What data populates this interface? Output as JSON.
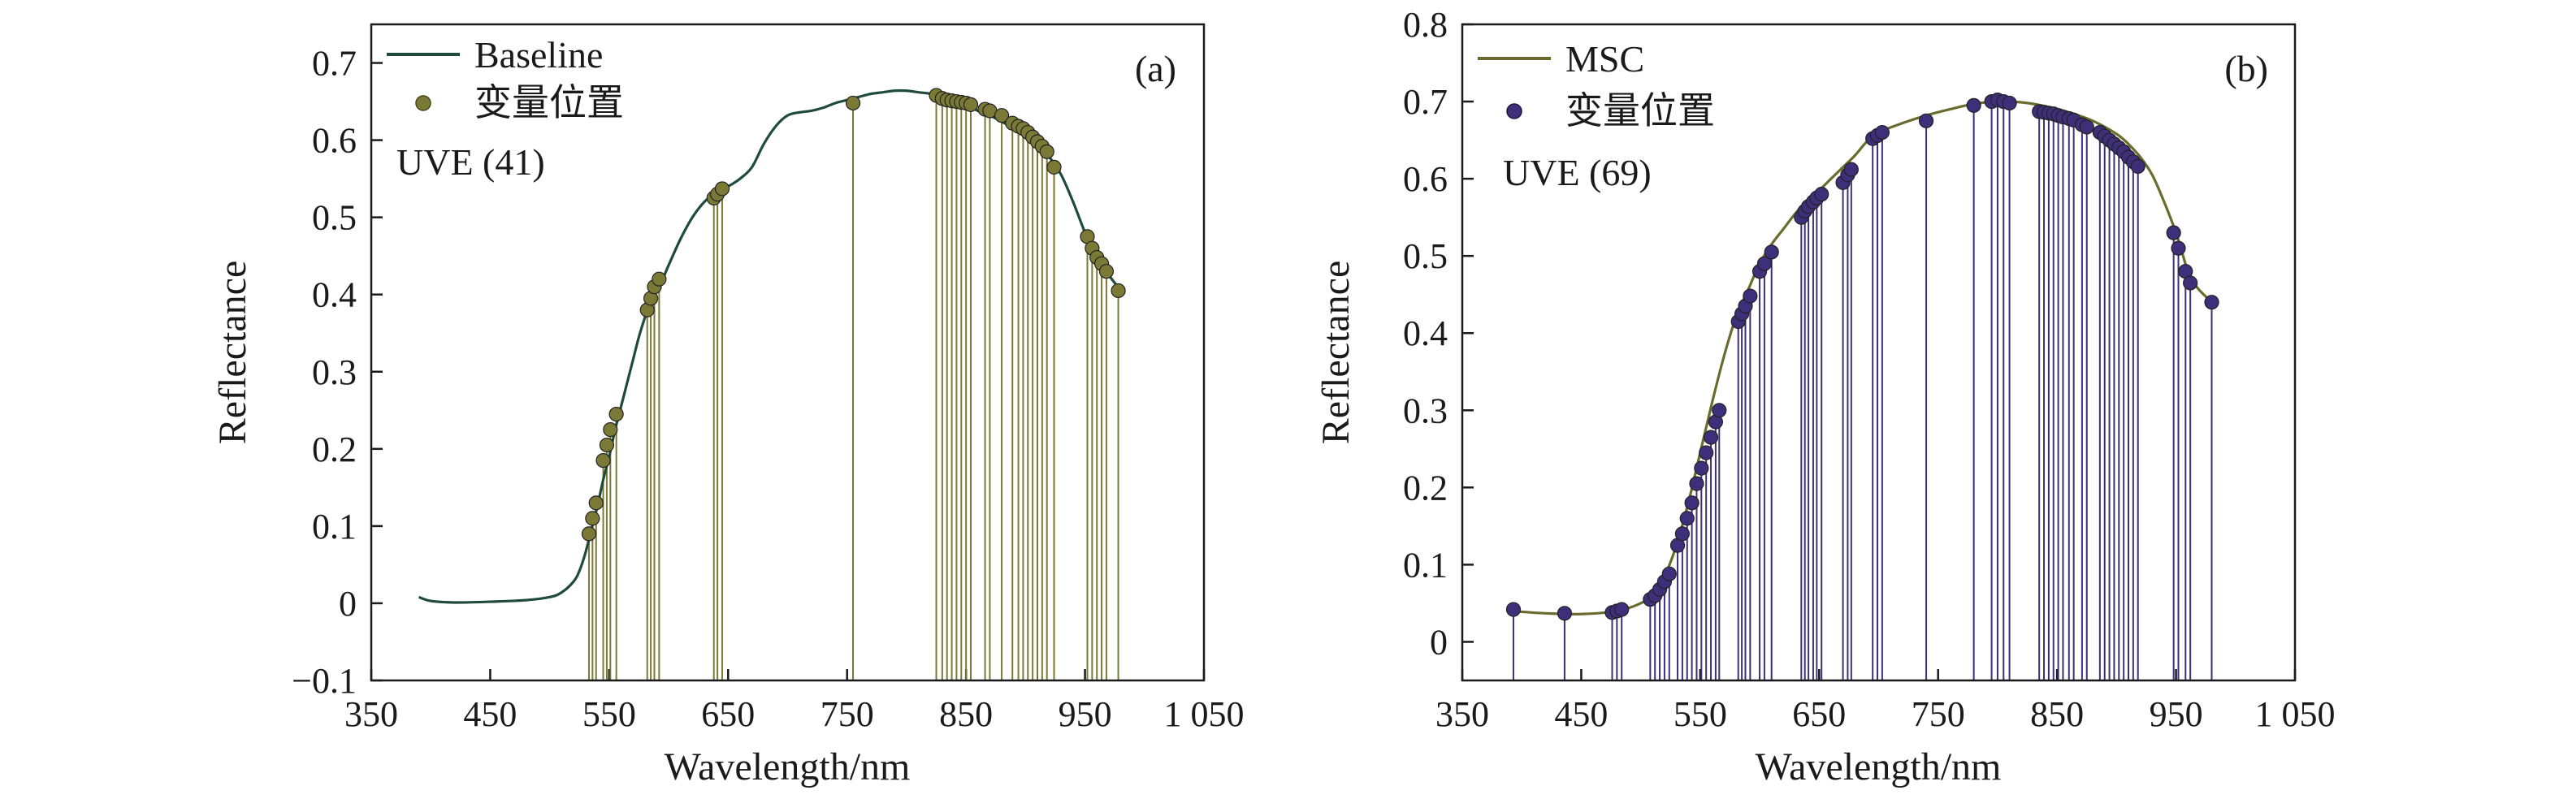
{
  "figure": {
    "panels": [
      {
        "panel_label": "(a)",
        "legend_line_label": "Baseline",
        "legend_marker_label": "变量位置",
        "method_label": "UVE (41)"
      },
      {
        "panel_label": "(b)",
        "legend_line_label": "MSC",
        "legend_marker_label": "变量位置",
        "method_label": "UVE (69)"
      }
    ]
  },
  "chart_data": [
    {
      "type": "line",
      "title": "",
      "panel_label": "(a)",
      "xlabel": "Wavelength/nm",
      "ylabel": "Reflectance",
      "xlim": [
        350,
        1050
      ],
      "ylim": [
        -0.1,
        0.75
      ],
      "xticks": [
        350,
        450,
        550,
        650,
        750,
        850,
        950,
        1050
      ],
      "xtick_labels": [
        "350",
        "450",
        "550",
        "650",
        "750",
        "850",
        "950",
        "1 050"
      ],
      "yticks": [
        -0.1,
        0,
        0.1,
        0.2,
        0.3,
        0.4,
        0.5,
        0.6,
        0.7
      ],
      "ytick_labels": [
        "−0.1",
        "0",
        "0.1",
        "0.2",
        "0.3",
        "0.4",
        "0.5",
        "0.6",
        "0.7"
      ],
      "legend_position": "top-left",
      "annotation": "UVE (41)",
      "line_color": "#1f4a3c",
      "marker_color": "#7a7a36",
      "stem_color": "#7a7a36",
      "series": [
        {
          "name": "Baseline",
          "kind": "line",
          "x": [
            390,
            400,
            420,
            450,
            480,
            500,
            510,
            520,
            525,
            530,
            535,
            540,
            545,
            550,
            555,
            560,
            565,
            570,
            575,
            580,
            585,
            590,
            595,
            600,
            610,
            620,
            630,
            640,
            650,
            660,
            670,
            680,
            690,
            700,
            710,
            720,
            730,
            740,
            750,
            760,
            770,
            780,
            790,
            800,
            810,
            820,
            830,
            840,
            850,
            860,
            870,
            880,
            890,
            900,
            910,
            920,
            930,
            940,
            950,
            955,
            960,
            965,
            970,
            975,
            980
          ],
          "y": [
            0.008,
            0.003,
            0.001,
            0.002,
            0.004,
            0.008,
            0.014,
            0.028,
            0.042,
            0.065,
            0.095,
            0.125,
            0.16,
            0.19,
            0.225,
            0.255,
            0.285,
            0.315,
            0.345,
            0.37,
            0.39,
            0.405,
            0.42,
            0.438,
            0.472,
            0.5,
            0.52,
            0.532,
            0.54,
            0.55,
            0.565,
            0.595,
            0.618,
            0.632,
            0.636,
            0.638,
            0.642,
            0.648,
            0.652,
            0.656,
            0.66,
            0.662,
            0.664,
            0.664,
            0.662,
            0.66,
            0.655,
            0.65,
            0.645,
            0.638,
            0.632,
            0.624,
            0.615,
            0.605,
            0.592,
            0.578,
            0.555,
            0.52,
            0.48,
            0.463,
            0.448,
            0.435,
            0.425,
            0.415,
            0.405
          ]
        },
        {
          "name": "变量位置",
          "kind": "stem",
          "x": [
            533,
            536,
            539,
            545,
            548,
            551,
            556,
            582,
            585,
            588,
            592,
            638,
            641,
            645,
            755,
            825,
            830,
            834,
            838,
            842,
            846,
            850,
            854,
            866,
            870,
            880,
            889,
            894,
            898,
            902,
            906,
            910,
            914,
            918,
            924,
            952,
            956,
            960,
            964,
            968,
            978
          ],
          "y": [
            0.09,
            0.11,
            0.13,
            0.185,
            0.205,
            0.225,
            0.245,
            0.38,
            0.395,
            0.41,
            0.42,
            0.525,
            0.53,
            0.537,
            0.648,
            0.658,
            0.654,
            0.652,
            0.651,
            0.65,
            0.649,
            0.648,
            0.646,
            0.64,
            0.638,
            0.632,
            0.622,
            0.618,
            0.615,
            0.61,
            0.604,
            0.598,
            0.592,
            0.585,
            0.565,
            0.475,
            0.46,
            0.448,
            0.44,
            0.43,
            0.405
          ]
        }
      ]
    },
    {
      "type": "line",
      "title": "",
      "panel_label": "(b)",
      "xlabel": "Wavelength/nm",
      "ylabel": "Reflectance",
      "xlim": [
        350,
        1050
      ],
      "ylim": [
        -0.05,
        0.8
      ],
      "xticks": [
        350,
        450,
        550,
        650,
        750,
        850,
        950,
        1050
      ],
      "xtick_labels": [
        "350",
        "450",
        "550",
        "650",
        "750",
        "850",
        "950",
        "1 050"
      ],
      "yticks": [
        0,
        0.1,
        0.2,
        0.3,
        0.4,
        0.5,
        0.6,
        0.7,
        0.8
      ],
      "ytick_labels": [
        "0",
        "0.1",
        "0.2",
        "0.3",
        "0.4",
        "0.5",
        "0.6",
        "0.7",
        "0.8"
      ],
      "legend_position": "top-left",
      "annotation": "UVE (69)",
      "line_color": "#6b6b2e",
      "marker_color": "#3d2f7a",
      "stem_color": "#3d2f7a",
      "series": [
        {
          "name": "MSC",
          "kind": "line",
          "x": [
            390,
            420,
            450,
            480,
            500,
            510,
            520,
            530,
            540,
            550,
            560,
            570,
            580,
            590,
            600,
            610,
            620,
            630,
            640,
            650,
            660,
            670,
            680,
            690,
            700,
            720,
            740,
            760,
            780,
            800,
            820,
            840,
            860,
            880,
            900,
            910,
            920,
            930,
            940,
            950,
            955,
            960,
            965,
            970,
            980
          ],
          "y": [
            0.04,
            0.037,
            0.036,
            0.04,
            0.05,
            0.062,
            0.085,
            0.125,
            0.18,
            0.245,
            0.31,
            0.37,
            0.42,
            0.455,
            0.49,
            0.515,
            0.535,
            0.555,
            0.572,
            0.585,
            0.6,
            0.615,
            0.63,
            0.648,
            0.66,
            0.672,
            0.682,
            0.69,
            0.697,
            0.7,
            0.699,
            0.694,
            0.686,
            0.675,
            0.658,
            0.645,
            0.628,
            0.605,
            0.57,
            0.53,
            0.505,
            0.48,
            0.465,
            0.455,
            0.44
          ]
        },
        {
          "name": "变量位置",
          "kind": "stem",
          "x": [
            393,
            436,
            476,
            480,
            484,
            508,
            512,
            516,
            520,
            524,
            531,
            535,
            539,
            543,
            547,
            551,
            555,
            559,
            563,
            566,
            582,
            585,
            588,
            592,
            600,
            604,
            610,
            635,
            638,
            641,
            645,
            648,
            652,
            670,
            674,
            677,
            695,
            699,
            703,
            740,
            780,
            795,
            800,
            805,
            810,
            835,
            839,
            843,
            847,
            851,
            855,
            860,
            864,
            871,
            875,
            886,
            890,
            894,
            898,
            902,
            906,
            910,
            914,
            918,
            948,
            952,
            958,
            962,
            980
          ],
          "y": [
            0.042,
            0.037,
            0.038,
            0.04,
            0.042,
            0.055,
            0.06,
            0.068,
            0.078,
            0.088,
            0.125,
            0.14,
            0.16,
            0.18,
            0.205,
            0.225,
            0.245,
            0.265,
            0.285,
            0.3,
            0.415,
            0.425,
            0.435,
            0.448,
            0.48,
            0.49,
            0.505,
            0.55,
            0.558,
            0.564,
            0.57,
            0.575,
            0.58,
            0.595,
            0.605,
            0.612,
            0.652,
            0.656,
            0.66,
            0.675,
            0.695,
            0.7,
            0.702,
            0.7,
            0.698,
            0.687,
            0.686,
            0.685,
            0.684,
            0.682,
            0.68,
            0.678,
            0.676,
            0.67,
            0.667,
            0.66,
            0.655,
            0.65,
            0.645,
            0.64,
            0.635,
            0.628,
            0.622,
            0.616,
            0.53,
            0.51,
            0.48,
            0.465,
            0.44
          ]
        }
      ]
    }
  ]
}
